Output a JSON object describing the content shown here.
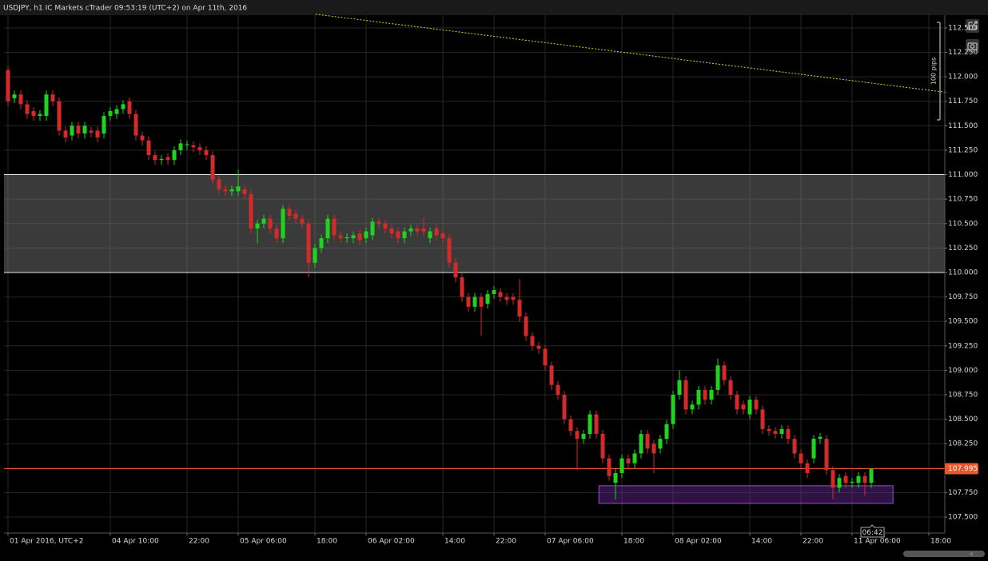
{
  "chart_data": {
    "type": "candlestick",
    "title": "USDJPY, h1 IC Markets cTrader 09:53:19 (UTC+2) on Apr 11th, 2016",
    "categories": [
      "01 Apr 2016, UTC+2",
      null,
      null,
      null,
      null,
      null,
      null,
      null,
      null,
      null,
      null,
      null,
      null,
      null,
      null,
      null,
      "04 Apr 10:00",
      null,
      null,
      null,
      null,
      null,
      null,
      null,
      null,
      null,
      null,
      null,
      "22:00",
      null,
      null,
      null,
      null,
      null,
      null,
      null,
      "05 Apr 06:00",
      null,
      null,
      null,
      null,
      null,
      null,
      null,
      null,
      null,
      null,
      null,
      "18:00",
      null,
      null,
      null,
      null,
      null,
      null,
      null,
      "06 Apr 02:00",
      null,
      null,
      null,
      null,
      null,
      null,
      null,
      null,
      null,
      null,
      null,
      "14:00",
      null,
      null,
      null,
      null,
      null,
      null,
      null,
      "22:00",
      null,
      null,
      null,
      null,
      null,
      null,
      null,
      "07 Apr 06:00",
      null,
      null,
      null,
      null,
      null,
      null,
      null,
      null,
      null,
      null,
      null,
      "18:00",
      null,
      null,
      null,
      null,
      null,
      null,
      null,
      "08 Apr 02:00",
      null,
      null,
      null,
      null,
      null,
      null,
      null,
      null,
      null,
      null,
      null,
      "14:00",
      null,
      null,
      null,
      null,
      null,
      null,
      null,
      "22:00",
      null,
      null,
      null,
      null,
      null,
      null,
      null,
      "11 Apr 06:00",
      null,
      null,
      null,
      null,
      null,
      null,
      null,
      null,
      null,
      null,
      null,
      "18:00"
    ],
    "open": [
      112.07,
      111.78,
      111.82,
      111.72,
      111.65,
      111.6,
      111.6,
      111.82,
      111.75,
      111.45,
      111.4,
      111.5,
      111.42,
      111.45,
      111.45,
      111.42,
      111.6,
      111.62,
      111.67,
      111.75,
      111.62,
      111.4,
      111.35,
      111.2,
      111.15,
      111.18,
      111.15,
      111.25,
      111.3,
      111.3,
      111.28,
      111.25,
      111.2,
      110.95,
      110.85,
      110.83,
      110.83,
      110.85,
      110.8,
      110.45,
      110.5,
      110.55,
      110.45,
      110.35,
      110.65,
      110.6,
      110.55,
      110.5,
      110.1,
      110.25,
      110.35,
      110.55,
      110.38,
      110.35,
      110.35,
      110.4,
      110.35,
      110.38,
      110.52,
      110.5,
      110.45,
      110.42,
      110.35,
      110.42,
      110.45,
      110.45,
      110.35,
      110.45,
      110.4,
      110.35,
      110.1,
      109.95,
      109.75,
      109.65,
      109.75,
      109.68,
      109.78,
      109.8,
      109.75,
      109.75,
      109.72,
      109.55,
      109.35,
      109.25,
      109.22,
      109.05,
      108.85,
      108.75,
      108.5,
      108.38,
      108.3,
      108.35,
      108.55,
      108.35,
      108.1,
      107.85,
      107.95,
      108.1,
      108.05,
      108.15,
      108.35,
      108.25,
      108.2,
      108.3,
      108.45,
      108.75,
      108.9,
      108.6,
      108.65,
      108.8,
      108.7,
      108.8,
      109.05,
      108.9,
      108.75,
      108.65,
      108.55,
      108.7,
      108.6,
      108.4,
      108.38,
      108.35,
      108.4,
      108.3,
      108.15,
      108.05,
      108.1,
      108.3,
      108.3,
      107.98,
      107.8,
      107.92,
      107.85,
      107.85,
      107.92,
      107.85,
      null,
      null,
      null,
      null,
      null,
      null,
      null,
      null,
      null
    ],
    "high": [
      112.11,
      111.86,
      111.86,
      111.76,
      111.69,
      111.66,
      111.86,
      111.86,
      111.79,
      111.49,
      111.54,
      111.54,
      111.54,
      111.49,
      111.49,
      111.64,
      111.69,
      111.71,
      111.76,
      111.79,
      111.66,
      111.44,
      111.39,
      111.24,
      111.2,
      111.22,
      111.29,
      111.36,
      111.35,
      111.34,
      111.32,
      111.29,
      111.24,
      110.99,
      110.89,
      110.89,
      111.05,
      110.89,
      110.84,
      110.54,
      110.59,
      110.59,
      110.49,
      110.69,
      110.69,
      110.64,
      110.59,
      110.54,
      110.29,
      110.39,
      110.59,
      110.59,
      110.42,
      110.4,
      110.42,
      110.44,
      110.46,
      110.56,
      110.56,
      110.54,
      110.49,
      110.46,
      110.46,
      110.49,
      110.49,
      110.56,
      110.46,
      110.49,
      110.44,
      110.39,
      110.14,
      109.99,
      109.79,
      109.79,
      109.79,
      109.82,
      109.86,
      109.84,
      109.79,
      109.79,
      109.93,
      109.59,
      109.39,
      109.29,
      109.26,
      109.09,
      108.89,
      108.79,
      108.54,
      108.42,
      108.39,
      108.59,
      108.59,
      108.39,
      108.14,
      107.99,
      108.14,
      108.14,
      108.19,
      108.39,
      108.39,
      108.29,
      108.34,
      108.49,
      108.79,
      109.0,
      108.94,
      108.69,
      108.84,
      108.84,
      108.84,
      109.12,
      109.09,
      108.94,
      108.79,
      108.69,
      108.74,
      108.74,
      108.64,
      108.44,
      108.42,
      108.44,
      108.44,
      108.34,
      108.19,
      108.09,
      108.34,
      108.36,
      108.34,
      108.02,
      107.94,
      107.96,
      107.9,
      107.96,
      107.96,
      108.0,
      null,
      null,
      null,
      null,
      null,
      null,
      null,
      null,
      null
    ],
    "low": [
      111.7,
      111.73,
      111.67,
      111.57,
      111.55,
      111.55,
      111.55,
      111.7,
      111.4,
      111.33,
      111.35,
      111.37,
      111.37,
      111.38,
      111.33,
      111.37,
      111.55,
      111.57,
      111.62,
      111.57,
      111.35,
      111.3,
      111.15,
      111.1,
      111.1,
      111.1,
      111.1,
      111.2,
      111.25,
      111.23,
      111.2,
      111.15,
      110.9,
      110.8,
      110.78,
      110.78,
      110.78,
      110.75,
      110.4,
      110.3,
      110.45,
      110.4,
      110.3,
      110.3,
      110.53,
      110.5,
      110.45,
      109.95,
      110.05,
      110.2,
      110.3,
      110.33,
      110.3,
      110.3,
      110.3,
      110.28,
      110.3,
      110.33,
      110.45,
      110.4,
      110.35,
      110.3,
      110.3,
      110.37,
      110.37,
      110.37,
      110.3,
      110.33,
      110.3,
      110.05,
      109.9,
      109.7,
      109.6,
      109.6,
      109.35,
      109.63,
      109.73,
      109.7,
      109.67,
      109.67,
      109.5,
      109.3,
      109.2,
      109.17,
      109.0,
      108.8,
      108.7,
      108.45,
      108.33,
      107.98,
      108.25,
      108.3,
      108.3,
      108.05,
      107.87,
      107.68,
      107.9,
      108.0,
      108.0,
      108.1,
      108.15,
      107.95,
      108.15,
      108.25,
      108.4,
      108.7,
      108.55,
      108.55,
      108.6,
      108.65,
      108.65,
      108.75,
      108.85,
      108.7,
      108.55,
      108.55,
      108.5,
      108.55,
      108.35,
      108.33,
      108.3,
      108.3,
      108.25,
      108.1,
      108.0,
      107.9,
      108.05,
      108.25,
      107.93,
      107.68,
      107.75,
      107.8,
      107.8,
      107.8,
      107.72,
      107.8,
      null,
      null,
      null,
      null,
      null,
      null,
      null,
      null,
      null
    ],
    "close": [
      111.75,
      111.82,
      111.72,
      111.62,
      111.6,
      111.62,
      111.82,
      111.75,
      111.45,
      111.38,
      111.5,
      111.42,
      111.5,
      111.43,
      111.38,
      111.6,
      111.65,
      111.67,
      111.72,
      111.62,
      111.4,
      111.35,
      111.2,
      111.15,
      111.16,
      111.15,
      111.25,
      111.32,
      111.31,
      111.28,
      111.25,
      111.2,
      110.95,
      110.85,
      110.83,
      110.85,
      110.88,
      110.8,
      110.45,
      110.5,
      110.55,
      110.45,
      110.35,
      110.65,
      110.58,
      110.55,
      110.5,
      110.1,
      110.25,
      110.35,
      110.55,
      110.38,
      110.35,
      110.36,
      110.38,
      110.33,
      110.42,
      110.52,
      110.5,
      110.45,
      110.4,
      110.35,
      110.42,
      110.45,
      110.42,
      110.42,
      110.42,
      110.38,
      110.35,
      110.1,
      109.95,
      109.75,
      109.65,
      109.75,
      109.65,
      109.78,
      109.82,
      109.75,
      109.72,
      109.72,
      109.55,
      109.35,
      109.25,
      109.22,
      109.05,
      108.85,
      108.75,
      108.5,
      108.38,
      108.3,
      108.35,
      108.55,
      108.35,
      108.1,
      107.92,
      107.95,
      108.1,
      108.05,
      108.15,
      108.35,
      108.2,
      108.15,
      108.3,
      108.45,
      108.75,
      108.9,
      108.6,
      108.65,
      108.8,
      108.7,
      108.8,
      109.05,
      108.9,
      108.75,
      108.6,
      108.6,
      108.7,
      108.6,
      108.4,
      108.38,
      108.35,
      108.4,
      108.3,
      108.15,
      108.05,
      107.95,
      108.3,
      108.32,
      107.98,
      107.8,
      107.9,
      107.85,
      107.86,
      107.92,
      107.85,
      107.995,
      null,
      null,
      null,
      null,
      null,
      null,
      null,
      null,
      null
    ],
    "up_color": "#1fd41f",
    "down_color": "#d42a2a",
    "xlim": [
      -0.625,
      146.5
    ],
    "ylim": [
      107.337,
      112.63
    ],
    "yticks": [
      {
        "value": 107.5,
        "label": "107.500"
      },
      {
        "value": 107.75,
        "label": "107.750"
      },
      {
        "value": 108,
        "label": "108.000"
      },
      {
        "value": 108.25,
        "label": "108.250"
      },
      {
        "value": 108.5,
        "label": "108.500"
      },
      {
        "value": 108.75,
        "label": "108.750"
      },
      {
        "value": 109,
        "label": "109.000"
      },
      {
        "value": 109.25,
        "label": "109.250"
      },
      {
        "value": 109.5,
        "label": "109.500"
      },
      {
        "value": 109.75,
        "label": "109.750"
      },
      {
        "value": 110,
        "label": "110.000"
      },
      {
        "value": 110.25,
        "label": "110.250"
      },
      {
        "value": 110.5,
        "label": "110.500"
      },
      {
        "value": 110.75,
        "label": "110.750"
      },
      {
        "value": 111,
        "label": "111.000"
      },
      {
        "value": 111.25,
        "label": "111.250"
      },
      {
        "value": 111.5,
        "label": "111.500"
      },
      {
        "value": 111.75,
        "label": "111.750"
      },
      {
        "value": 112,
        "label": "112.000"
      },
      {
        "value": 112.25,
        "label": "112.250"
      },
      {
        "value": 112.5,
        "label": "112.500"
      }
    ],
    "grid": true,
    "last_price": 107.995,
    "last_price_color": "#f0542a",
    "band": [
      110,
      111
    ],
    "rectangle": {
      "x": [
        92.4,
        138.4
      ],
      "y": [
        107.64,
        107.82
      ],
      "color": "#6a2a9a"
    },
    "trendline": {
      "x": [
        48.1,
        146.9
      ],
      "y": [
        112.64,
        111.84
      ],
      "color": "#d6d62a"
    },
    "ruler_label": "100 pips",
    "countdown": "06:42"
  }
}
